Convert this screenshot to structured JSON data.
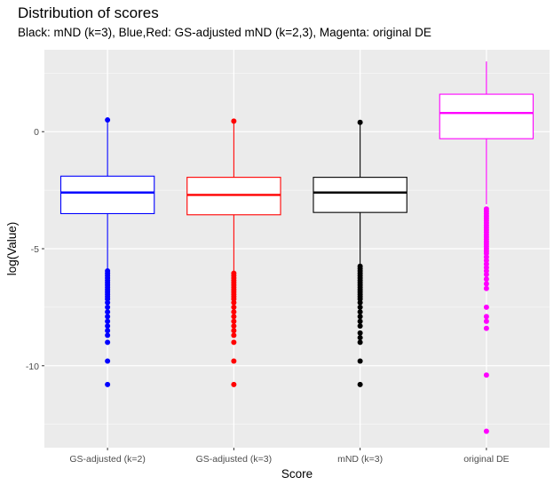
{
  "chart_data": {
    "type": "boxplot",
    "title": "Distribution of scores",
    "subtitle": "Black: mND (k=3), Blue,Red: GS-adjusted mND (k=2,3), Magenta: original DE",
    "xlabel": "Score",
    "ylabel": "log(Value)",
    "ylim": [
      -13.5,
      3.5
    ],
    "yticks": [
      0,
      -5,
      -10
    ],
    "ytick_labels": [
      "0",
      "-5",
      "-10"
    ],
    "grid": true,
    "categories": [
      "GS-adjusted (k=2)",
      "GS-adjusted (k=3)",
      "mND (k=3)",
      "original DE"
    ],
    "series": [
      {
        "category": "GS-adjusted (k=2)",
        "color": "#0000ff",
        "q1": -3.5,
        "median": -2.6,
        "q3": -1.9,
        "whisker_low": -5.9,
        "whisker_high": 0.5,
        "outliers": [
          0.5,
          -5.95,
          -6.05,
          -6.15,
          -6.25,
          -6.35,
          -6.45,
          -6.55,
          -6.65,
          -6.75,
          -6.85,
          -6.95,
          -7.05,
          -7.15,
          -7.3,
          -7.5,
          -7.7,
          -7.9,
          -8.1,
          -8.3,
          -8.5,
          -8.7,
          -9.0,
          -9.8,
          -10.8
        ]
      },
      {
        "category": "GS-adjusted (k=3)",
        "color": "#ff0000",
        "q1": -3.55,
        "median": -2.7,
        "q3": -1.95,
        "whisker_low": -6.0,
        "whisker_high": 0.45,
        "outliers": [
          0.45,
          -6.05,
          -6.15,
          -6.25,
          -6.35,
          -6.45,
          -6.55,
          -6.65,
          -6.75,
          -6.85,
          -6.95,
          -7.05,
          -7.15,
          -7.3,
          -7.5,
          -7.7,
          -7.9,
          -8.1,
          -8.3,
          -8.5,
          -8.7,
          -9.0,
          -9.8,
          -10.8
        ]
      },
      {
        "category": "mND (k=3)",
        "color": "#000000",
        "q1": -3.45,
        "median": -2.6,
        "q3": -1.95,
        "whisker_low": -5.8,
        "whisker_high": 0.4,
        "outliers": [
          0.4,
          -5.75,
          -5.85,
          -5.95,
          -6.05,
          -6.15,
          -6.25,
          -6.35,
          -6.45,
          -6.55,
          -6.65,
          -6.75,
          -6.85,
          -6.95,
          -7.05,
          -7.15,
          -7.3,
          -7.5,
          -7.7,
          -7.9,
          -8.1,
          -8.3,
          -8.6,
          -8.8,
          -9.0,
          -9.8,
          -10.8
        ]
      },
      {
        "category": "original DE",
        "color": "#ff00ff",
        "q1": -0.3,
        "median": 0.8,
        "q3": 1.6,
        "whisker_low": -3.1,
        "whisker_high": 3.0,
        "outliers": [
          -3.3,
          -3.4,
          -3.5,
          -3.6,
          -3.7,
          -3.8,
          -3.9,
          -4.0,
          -4.1,
          -4.2,
          -4.3,
          -4.4,
          -4.5,
          -4.6,
          -4.7,
          -4.8,
          -4.9,
          -5.0,
          -5.1,
          -5.2,
          -5.35,
          -5.5,
          -5.65,
          -5.8,
          -5.95,
          -6.1,
          -6.3,
          -6.5,
          -6.7,
          -7.5,
          -7.9,
          -8.1,
          -8.4,
          -10.4,
          -12.8
        ]
      }
    ]
  }
}
